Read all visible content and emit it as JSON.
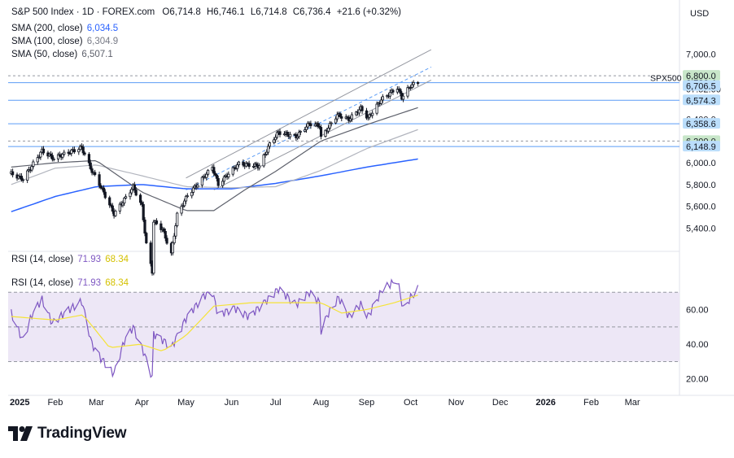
{
  "header": {
    "symbol_title": "S&P 500 Index · 1D · FOREX.com",
    "ohlc": {
      "o_label": "O",
      "o": "6,714.8",
      "h_label": "H",
      "h": "6,746.1",
      "l_label": "L",
      "l": "6,714.8",
      "c_label": "C",
      "c": "6,736.4",
      "change": "+21.6 (+0.32%)"
    },
    "sma200": {
      "label": "SMA (200, close)",
      "value": "6,034.5"
    },
    "sma100": {
      "label": "SMA (100, close)",
      "value": "6,304.9"
    },
    "sma50": {
      "label": "SMA (50, close)",
      "value": "6,507.1"
    },
    "rsi_top": {
      "label": "RSI (14, close)",
      "v1": "71.93",
      "v2": "68.34"
    },
    "rsi_bottom": {
      "label": "RSI (14, close)",
      "v1": "71.93",
      "v2": "68.34"
    },
    "currency": "USD"
  },
  "branding": {
    "name": "TradingView"
  },
  "colors": {
    "bg": "#ffffff",
    "candle": "#131722",
    "sma200": "#2962ff",
    "sma100": "#b2b5be",
    "sma50": "#5d606b",
    "channel": "#9598a1",
    "hline": "#5b9cf6",
    "rsi": "#7e57c2",
    "rsi_ma": "#f5e337",
    "rsi_band": "#ede7f6",
    "grid": "#f0f3fa",
    "label_green": "#c8e6c9",
    "label_blue": "#bbdefb",
    "text": "#131722"
  },
  "chart_data": {
    "type": "candlestick",
    "price_axis": {
      "ticks": [
        "7,000.0",
        "6,800.0",
        "6,600.0",
        "6,400.0",
        "6,200.0",
        "6,000.0",
        "5,800.0",
        "5,600.0",
        "5,400.0"
      ],
      "range": [
        5200,
        7100
      ]
    },
    "rsi_axis": {
      "ticks": [
        "60.00",
        "40.00",
        "20.00"
      ],
      "range": [
        18,
        80
      ],
      "upper_band": 70,
      "middle_band": 50,
      "lower_band": 30
    },
    "time_axis": [
      "2025",
      "Feb",
      "Mar",
      "Apr",
      "May",
      "Jun",
      "Jul",
      "Aug",
      "Sep",
      "Oct",
      "Nov",
      "Dec",
      "2026",
      "Feb",
      "Mar"
    ],
    "price_labels": [
      {
        "text": "6,800.0",
        "style": "green",
        "value": 6800
      },
      {
        "text": "6,736.4",
        "style": "plain",
        "value": 6736.4
      },
      {
        "text": "07:52:00",
        "style": "plain",
        "value": 6676
      },
      {
        "text": "6,706.5",
        "style": "blue",
        "value": 6706.5
      },
      {
        "text": "6,574.3",
        "style": "blue",
        "value": 6574.3
      },
      {
        "text": "6,358.6",
        "style": "blue",
        "value": 6358.6
      },
      {
        "text": "6,200.0",
        "style": "green",
        "value": 6200
      },
      {
        "text": "6,148.9",
        "style": "blue",
        "value": 6148.9
      }
    ],
    "horizontal_levels": [
      6800,
      6736.4,
      6574.3,
      6358.6,
      6200,
      6148.9
    ],
    "symbol_tag": "SPX500",
    "price_anchors": [
      [
        "2025-01-02",
        5900
      ],
      [
        "2025-01-10",
        5850
      ],
      [
        "2025-01-15",
        5950
      ],
      [
        "2025-01-23",
        6110
      ],
      [
        "2025-01-31",
        6040
      ],
      [
        "2025-02-07",
        6080
      ],
      [
        "2025-02-19",
        6140
      ],
      [
        "2025-02-25",
        5950
      ],
      [
        "2025-03-04",
        5780
      ],
      [
        "2025-03-13",
        5530
      ],
      [
        "2025-03-20",
        5660
      ],
      [
        "2025-03-26",
        5780
      ],
      [
        "2025-04-01",
        5600
      ],
      [
        "2025-04-04",
        5250
      ],
      [
        "2025-04-08",
        5000
      ],
      [
        "2025-04-09",
        5460
      ],
      [
        "2025-04-15",
        5390
      ],
      [
        "2025-04-21",
        5160
      ],
      [
        "2025-04-25",
        5520
      ],
      [
        "2025-05-02",
        5700
      ],
      [
        "2025-05-12",
        5850
      ],
      [
        "2025-05-19",
        5960
      ],
      [
        "2025-05-23",
        5800
      ],
      [
        "2025-05-30",
        5900
      ],
      [
        "2025-06-06",
        5990
      ],
      [
        "2025-06-13",
        5980
      ],
      [
        "2025-06-20",
        5970
      ],
      [
        "2025-06-27",
        6170
      ],
      [
        "2025-07-03",
        6280
      ],
      [
        "2025-07-15",
        6240
      ],
      [
        "2025-07-24",
        6360
      ],
      [
        "2025-07-31",
        6340
      ],
      [
        "2025-08-01",
        6230
      ],
      [
        "2025-08-12",
        6440
      ],
      [
        "2025-08-20",
        6400
      ],
      [
        "2025-08-28",
        6500
      ],
      [
        "2025-09-02",
        6410
      ],
      [
        "2025-09-11",
        6580
      ],
      [
        "2025-09-22",
        6690
      ],
      [
        "2025-09-25",
        6600
      ],
      [
        "2025-10-01",
        6710
      ],
      [
        "2025-10-06",
        6736.4
      ]
    ],
    "sma200_anchors": [
      [
        "2025-01-02",
        5550
      ],
      [
        "2025-02-01",
        5690
      ],
      [
        "2025-03-01",
        5780
      ],
      [
        "2025-04-01",
        5800
      ],
      [
        "2025-05-01",
        5760
      ],
      [
        "2025-06-01",
        5760
      ],
      [
        "2025-07-01",
        5810
      ],
      [
        "2025-08-01",
        5880
      ],
      [
        "2025-09-01",
        5960
      ],
      [
        "2025-10-06",
        6034.5
      ]
    ],
    "sma100_anchors": [
      [
        "2025-01-02",
        5800
      ],
      [
        "2025-02-01",
        5950
      ],
      [
        "2025-03-01",
        5980
      ],
      [
        "2025-04-01",
        5880
      ],
      [
        "2025-05-01",
        5780
      ],
      [
        "2025-06-01",
        5770
      ],
      [
        "2025-07-01",
        5780
      ],
      [
        "2025-08-01",
        5930
      ],
      [
        "2025-09-01",
        6130
      ],
      [
        "2025-10-06",
        6304.9
      ]
    ],
    "sma50_anchors": [
      [
        "2025-01-02",
        5960
      ],
      [
        "2025-02-01",
        6000
      ],
      [
        "2025-03-01",
        6020
      ],
      [
        "2025-04-01",
        5730
      ],
      [
        "2025-05-01",
        5560
      ],
      [
        "2025-05-20",
        5560
      ],
      [
        "2025-06-10",
        5750
      ],
      [
        "2025-07-01",
        5920
      ],
      [
        "2025-08-01",
        6200
      ],
      [
        "2025-09-01",
        6350
      ],
      [
        "2025-10-06",
        6507.1
      ]
    ],
    "channel": {
      "upper": [
        [
          "2025-05-01",
          5860
        ],
        [
          "2025-10-15",
          7040
        ]
      ],
      "middle": [
        [
          "2025-05-01",
          5750
        ],
        [
          "2025-10-15",
          6880
        ]
      ],
      "lower": [
        [
          "2025-05-20",
          5750
        ],
        [
          "2025-10-15",
          6760
        ]
      ]
    },
    "rsi_anchors": [
      [
        "2025-01-02",
        58
      ],
      [
        "2025-01-10",
        42
      ],
      [
        "2025-01-16",
        57
      ],
      [
        "2025-01-23",
        66
      ],
      [
        "2025-01-30",
        52
      ],
      [
        "2025-02-07",
        58
      ],
      [
        "2025-02-19",
        65
      ],
      [
        "2025-02-26",
        40
      ],
      [
        "2025-03-04",
        32
      ],
      [
        "2025-03-13",
        23
      ],
      [
        "2025-03-20",
        42
      ],
      [
        "2025-03-26",
        50
      ],
      [
        "2025-04-02",
        36
      ],
      [
        "2025-04-08",
        21
      ],
      [
        "2025-04-09",
        46
      ],
      [
        "2025-04-16",
        42
      ],
      [
        "2025-04-21",
        38
      ],
      [
        "2025-05-01",
        55
      ],
      [
        "2025-05-13",
        68
      ],
      [
        "2025-05-19",
        70
      ],
      [
        "2025-05-23",
        57
      ],
      [
        "2025-06-03",
        61
      ],
      [
        "2025-06-13",
        56
      ],
      [
        "2025-06-27",
        67
      ],
      [
        "2025-07-03",
        72
      ],
      [
        "2025-07-15",
        63
      ],
      [
        "2025-07-24",
        70
      ],
      [
        "2025-07-31",
        64
      ],
      [
        "2025-08-01",
        48
      ],
      [
        "2025-08-06",
        58
      ],
      [
        "2025-08-13",
        67
      ],
      [
        "2025-08-20",
        56
      ],
      [
        "2025-08-28",
        63
      ],
      [
        "2025-09-02",
        56
      ],
      [
        "2025-09-12",
        72
      ],
      [
        "2025-09-22",
        77
      ],
      [
        "2025-09-26",
        60
      ],
      [
        "2025-10-01",
        67
      ],
      [
        "2025-10-06",
        71.93
      ]
    ],
    "rsi_ma_anchors": [
      [
        "2025-01-02",
        56
      ],
      [
        "2025-02-01",
        54
      ],
      [
        "2025-02-20",
        57
      ],
      [
        "2025-03-10",
        38
      ],
      [
        "2025-03-31",
        40
      ],
      [
        "2025-04-15",
        36
      ],
      [
        "2025-05-01",
        45
      ],
      [
        "2025-05-20",
        62
      ],
      [
        "2025-06-15",
        64
      ],
      [
        "2025-07-15",
        64
      ],
      [
        "2025-08-01",
        64
      ],
      [
        "2025-08-15",
        58
      ],
      [
        "2025-09-01",
        60
      ],
      [
        "2025-09-20",
        64
      ],
      [
        "2025-10-06",
        68.34
      ]
    ]
  }
}
